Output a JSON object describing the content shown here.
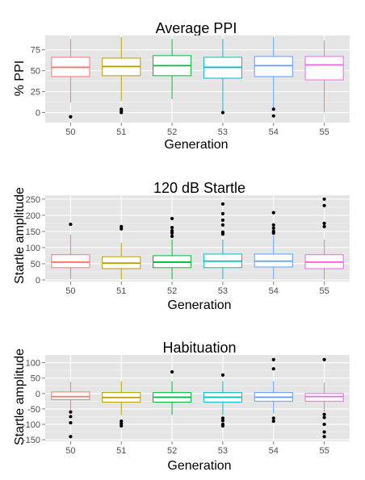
{
  "chart_data": [
    {
      "type": "box",
      "title": "Average PPI",
      "xlabel": "Generation",
      "ylabel": "% PPI",
      "categories": [
        "50",
        "51",
        "52",
        "53",
        "54",
        "55"
      ],
      "yticks": [
        0,
        25,
        50,
        75
      ],
      "ylim": [
        -12,
        92
      ],
      "grid": true,
      "legend": "none",
      "colors": [
        "#F8766D",
        "#B79F00",
        "#00BA38",
        "#00BFC4",
        "#619CFF",
        "#F564E3"
      ],
      "boxes": [
        {
          "whisker_low": 12,
          "q1": 43,
          "median": 54,
          "q3": 66,
          "whisker_high": 88,
          "outliers": [
            -5
          ]
        },
        {
          "whisker_low": 14,
          "q1": 44,
          "median": 55,
          "q3": 65,
          "whisker_high": 90,
          "outliers": [
            0,
            2,
            4
          ]
        },
        {
          "whisker_low": 16,
          "q1": 44,
          "median": 56,
          "q3": 68,
          "whisker_high": 88,
          "outliers": []
        },
        {
          "whisker_low": -2,
          "q1": 41,
          "median": 54,
          "q3": 66,
          "whisker_high": 88,
          "outliers": [
            0
          ]
        },
        {
          "whisker_low": 3,
          "q1": 43,
          "median": 56,
          "q3": 67,
          "whisker_high": 90,
          "outliers": [
            -4,
            4
          ]
        },
        {
          "whisker_low": 0,
          "q1": 39,
          "median": 57,
          "q3": 67,
          "whisker_high": 86,
          "outliers": []
        }
      ]
    },
    {
      "type": "box",
      "title": "120 dB Startle",
      "xlabel": "Generation",
      "ylabel": "Startle amplitude",
      "categories": [
        "50",
        "51",
        "52",
        "53",
        "54",
        "55"
      ],
      "yticks": [
        0,
        50,
        100,
        150,
        200,
        250
      ],
      "ylim": [
        -5,
        262
      ],
      "grid": true,
      "legend": "none",
      "colors": [
        "#F8766D",
        "#B79F00",
        "#00BA38",
        "#00BFC4",
        "#619CFF",
        "#F564E3"
      ],
      "boxes": [
        {
          "whisker_low": 2,
          "q1": 38,
          "median": 55,
          "q3": 78,
          "whisker_high": 140,
          "outliers": [
            172
          ]
        },
        {
          "whisker_low": 2,
          "q1": 35,
          "median": 52,
          "q3": 72,
          "whisker_high": 115,
          "outliers": [
            158,
            165
          ]
        },
        {
          "whisker_low": 2,
          "q1": 38,
          "median": 55,
          "q3": 75,
          "whisker_high": 125,
          "outliers": [
            135,
            145,
            152,
            162,
            190
          ]
        },
        {
          "whisker_low": 2,
          "q1": 38,
          "median": 58,
          "q3": 80,
          "whisker_high": 125,
          "outliers": [
            142,
            148,
            170,
            185,
            205,
            235
          ]
        },
        {
          "whisker_low": 2,
          "q1": 40,
          "median": 58,
          "q3": 80,
          "whisker_high": 138,
          "outliers": [
            145,
            150,
            160,
            170,
            208
          ]
        },
        {
          "whisker_low": 2,
          "q1": 35,
          "median": 55,
          "q3": 78,
          "whisker_high": 125,
          "outliers": [
            165,
            175,
            230,
            250
          ]
        }
      ]
    },
    {
      "type": "box",
      "title": "Habituation",
      "xlabel": "Generation",
      "ylabel": "Startle amplitude",
      "categories": [
        "50",
        "51",
        "52",
        "53",
        "54",
        "55"
      ],
      "yticks": [
        -150,
        -100,
        -50,
        0,
        50,
        100
      ],
      "ylim": [
        -155,
        125
      ],
      "grid": true,
      "legend": "none",
      "colors": [
        "#F8766D",
        "#B79F00",
        "#00BA38",
        "#00BFC4",
        "#619CFF",
        "#F564E3"
      ],
      "boxes": [
        {
          "whisker_low": -55,
          "q1": -20,
          "median": -10,
          "q3": 5,
          "whisker_high": 38,
          "outliers": [
            -60,
            -75,
            -95,
            -140
          ]
        },
        {
          "whisker_low": -70,
          "q1": -28,
          "median": -13,
          "q3": 3,
          "whisker_high": 40,
          "outliers": [
            -90,
            -98,
            -105
          ]
        },
        {
          "whisker_low": -70,
          "q1": -28,
          "median": -12,
          "q3": 3,
          "whisker_high": 40,
          "outliers": [
            70
          ]
        },
        {
          "whisker_low": -70,
          "q1": -28,
          "median": -12,
          "q3": 3,
          "whisker_high": 40,
          "outliers": [
            60,
            -80,
            -88,
            -100,
            -105
          ]
        },
        {
          "whisker_low": -65,
          "q1": -25,
          "median": -12,
          "q3": 3,
          "whisker_high": 40,
          "outliers": [
            80,
            110,
            -80,
            -90
          ]
        },
        {
          "whisker_low": -60,
          "q1": -25,
          "median": -10,
          "q3": 0,
          "whisker_high": 35,
          "outliers": [
            110,
            -68,
            -78,
            -100,
            -125,
            -140
          ]
        }
      ]
    }
  ]
}
